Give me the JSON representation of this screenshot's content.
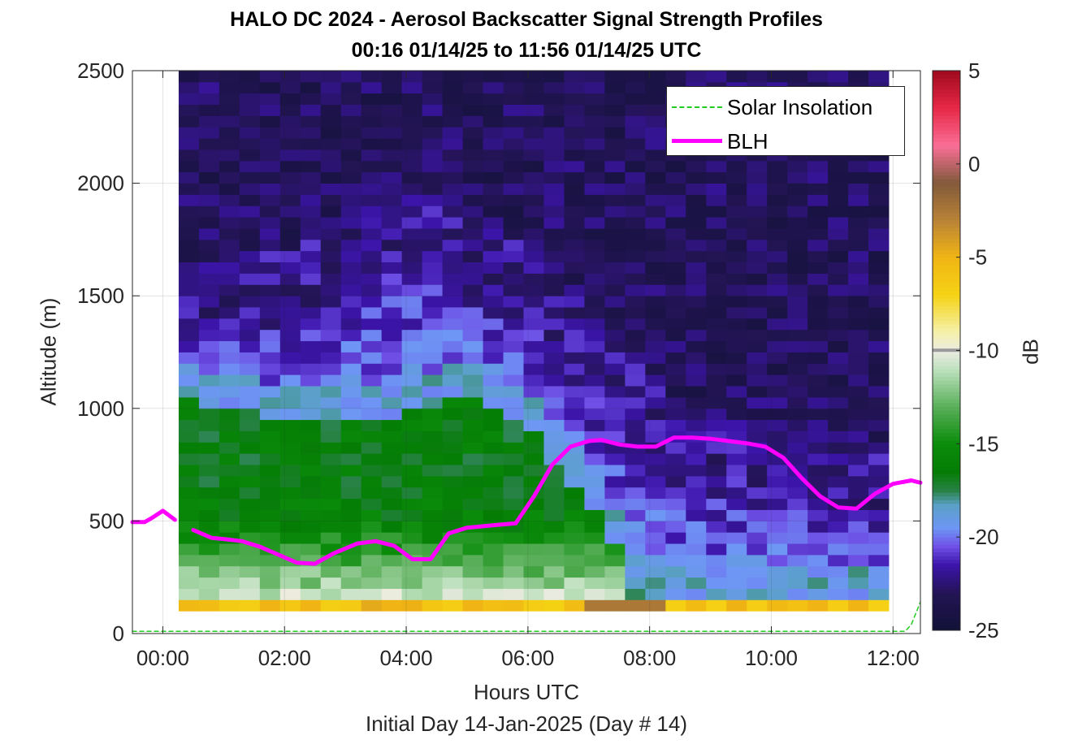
{
  "titles": {
    "line1": "HALO DC 2024 - Aerosol Backscatter Signal Strength Profiles",
    "line2": "00:16 01/14/25 to 11:56 01/14/25  UTC"
  },
  "axes": {
    "xlabel": "Hours UTC",
    "xlabel2": "Initial Day 14-Jan-2025 (Day # 14)",
    "ylabel": "Altitude (m)",
    "colorbar_label": "dB"
  },
  "chart_data": {
    "type": "heatmap",
    "x_range_hours": [
      -0.5,
      12.45
    ],
    "y_range_m": [
      0,
      2500
    ],
    "xticks": [
      0,
      2,
      4,
      6,
      8,
      10,
      12
    ],
    "xtick_labels": [
      "00:00",
      "02:00",
      "04:00",
      "06:00",
      "08:00",
      "10:00",
      "12:00"
    ],
    "yticks": [
      0,
      500,
      1000,
      1500,
      2000,
      2500
    ],
    "ytick_labels": [
      "0",
      "500",
      "1000",
      "1500",
      "2000",
      "2500"
    ],
    "colorbar": {
      "range_db": [
        -25,
        5
      ],
      "ticks": [
        5,
        0,
        -5,
        -10,
        -15,
        -20,
        -25
      ],
      "tick_labels": [
        "5",
        "0",
        "-5",
        "-10",
        "-15",
        "-20",
        "-25"
      ]
    },
    "grid": true,
    "legend_position": "top-right",
    "legend": [
      {
        "label": "Solar Insolation",
        "color": "#22cc22",
        "style": "dashed"
      },
      {
        "label": "BLH",
        "color": "#ff00ff",
        "style": "solid"
      }
    ],
    "heatmap": {
      "time_start_hours": 0.26,
      "time_end_hours": 11.93,
      "columns": 35,
      "alt_start_m": 100,
      "alt_end_m": 2500,
      "row_height_m": 50,
      "low_layer_profile": [
        {
          "alt": 100,
          "db": -5.5
        },
        {
          "alt": 150,
          "db": -9.8
        },
        {
          "alt": 200,
          "db": -11.5
        },
        {
          "alt": 300,
          "db": -13.0
        },
        {
          "alt": 400,
          "db": -14.5
        },
        {
          "alt": 500,
          "db": -16.0
        },
        {
          "alt": 650,
          "db": -16.5
        },
        {
          "alt": 800,
          "db": -16.5
        }
      ],
      "layer_top_m": [
        {
          "t": 0.26,
          "top": 1050
        },
        {
          "t": 2.0,
          "top": 950
        },
        {
          "t": 3.0,
          "top": 920
        },
        {
          "t": 4.0,
          "top": 980
        },
        {
          "t": 5.0,
          "top": 1050
        },
        {
          "t": 6.0,
          "top": 950
        },
        {
          "t": 6.6,
          "top": 700
        },
        {
          "t": 7.2,
          "top": 500
        },
        {
          "t": 7.6,
          "top": 300
        },
        {
          "t": 8.0,
          "top": 200
        },
        {
          "t": 9.0,
          "top": 150
        },
        {
          "t": 11.93,
          "top": 150
        }
      ],
      "aerosol_band": [
        {
          "t": 0.26,
          "top": 1350
        },
        {
          "t": 2.0,
          "top": 1450
        },
        {
          "t": 4.0,
          "top": 1750
        },
        {
          "t": 5.5,
          "top": 1550
        },
        {
          "t": 6.6,
          "top": 1300
        },
        {
          "t": 7.5,
          "top": 1000
        },
        {
          "t": 8.3,
          "top": 800
        },
        {
          "t": 9.5,
          "top": 700
        },
        {
          "t": 10.5,
          "top": 650
        },
        {
          "t": 11.93,
          "top": 550
        }
      ],
      "free_troposphere_db": -23.0
    },
    "series": [
      {
        "name": "BLH",
        "color": "#ff00ff",
        "segments": [
          {
            "x": [
              -0.5,
              -0.3,
              -0.2,
              0.0,
              0.2
            ],
            "y": [
              495,
              495,
              510,
              545,
              505
            ]
          },
          {
            "x": [
              0.5,
              0.8,
              1.0,
              1.3,
              1.6,
              1.9,
              2.2,
              2.5,
              2.8,
              3.2,
              3.5,
              3.8,
              4.1,
              4.4,
              4.7,
              5.0,
              5.4,
              5.8,
              6.1,
              6.4,
              6.7,
              7.0,
              7.2,
              7.5,
              7.8,
              8.1,
              8.4,
              8.7,
              9.0,
              9.3,
              9.6,
              9.9,
              10.2,
              10.5,
              10.8,
              11.1,
              11.4,
              11.7,
              12.0,
              12.3,
              12.45
            ],
            "y": [
              460,
              425,
              420,
              410,
              385,
              350,
              315,
              310,
              355,
              400,
              410,
              390,
              330,
              330,
              445,
              470,
              480,
              490,
              610,
              750,
              830,
              855,
              860,
              840,
              830,
              830,
              870,
              870,
              865,
              855,
              845,
              830,
              780,
              690,
              610,
              560,
              555,
              620,
              665,
              680,
              670
            ]
          }
        ]
      },
      {
        "name": "Solar Insolation",
        "color": "#22cc22",
        "x": [
          -0.5,
          12.2,
          12.3,
          12.45
        ],
        "y": [
          10,
          10,
          40,
          140
        ]
      }
    ]
  }
}
